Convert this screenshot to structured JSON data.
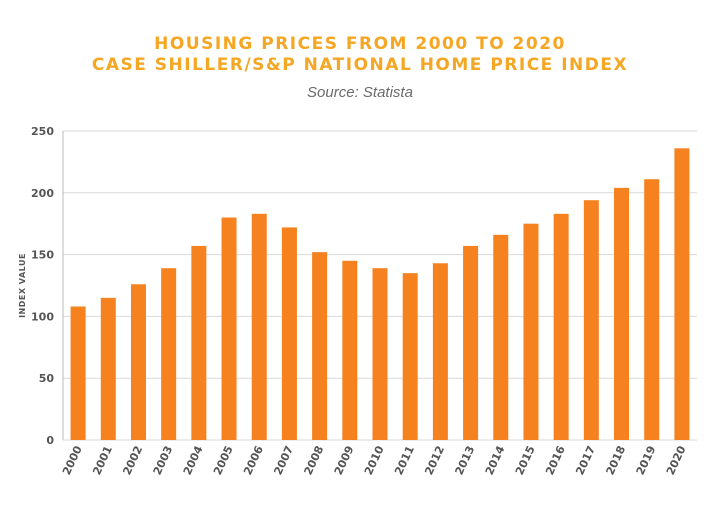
{
  "chart_data": {
    "type": "bar",
    "title": "HOUSING PRICES FROM 2000 TO 2020",
    "title_line2": "CASE SHILLER/S&P NATIONAL HOME PRICE INDEX",
    "subtitle": "Source: Statista",
    "xlabel": "",
    "ylabel": "INDEX VALUE",
    "ylim": [
      0,
      250
    ],
    "yticks": [
      0,
      50,
      100,
      150,
      200,
      250
    ],
    "grid": true,
    "categories": [
      "2000",
      "2001",
      "2002",
      "2003",
      "2004",
      "2005",
      "2006",
      "2007",
      "2008",
      "2009",
      "2010",
      "2011",
      "2012",
      "2013",
      "2014",
      "2015",
      "2016",
      "2017",
      "2018",
      "2019",
      "2020"
    ],
    "values": [
      108,
      115,
      126,
      139,
      157,
      180,
      183,
      172,
      152,
      145,
      139,
      135,
      143,
      157,
      166,
      175,
      183,
      194,
      204,
      211,
      236
    ],
    "bar_color": "#f5821f",
    "grid_color": "#d9d9d9",
    "title_color": "#f5a623"
  }
}
